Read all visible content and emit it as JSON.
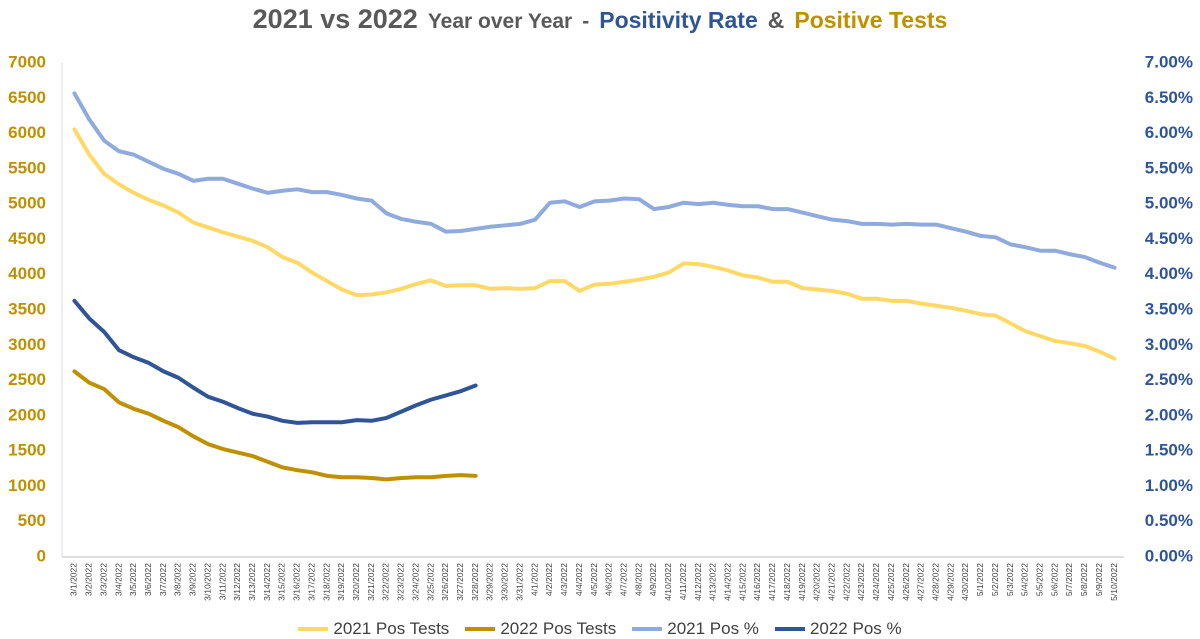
{
  "chart_data": {
    "type": "line",
    "title_parts": [
      {
        "text": "2021 vs 2022",
        "color": "#595959"
      },
      {
        "text": "Year over Year",
        "color": "#595959"
      },
      {
        "text": "-",
        "color": "#595959"
      },
      {
        "text": "Positivity Rate",
        "color": "#2f5597"
      },
      {
        "text": "&",
        "color": "#595959"
      },
      {
        "text": "Positive Tests",
        "color": "#bf9000"
      }
    ],
    "categories": [
      "3/1/2022",
      "3/2/2022",
      "3/3/2022",
      "3/4/2022",
      "3/5/2022",
      "3/6/2022",
      "3/7/2022",
      "3/8/2022",
      "3/9/2022",
      "3/10/2022",
      "3/11/2022",
      "3/12/2022",
      "3/13/2022",
      "3/14/2022",
      "3/15/2022",
      "3/16/2022",
      "3/17/2022",
      "3/18/2022",
      "3/19/2022",
      "3/20/2022",
      "3/21/2022",
      "3/22/2022",
      "3/23/2022",
      "3/24/2022",
      "3/25/2022",
      "3/26/2022",
      "3/27/2022",
      "3/28/2022",
      "3/29/2022",
      "3/30/2022",
      "3/31/2022",
      "4/1/2022",
      "4/2/2022",
      "4/3/2022",
      "4/4/2022",
      "4/5/2022",
      "4/6/2022",
      "4/7/2022",
      "4/8/2022",
      "4/9/2022",
      "4/10/2022",
      "4/11/2022",
      "4/12/2022",
      "4/13/2022",
      "4/14/2022",
      "4/15/2022",
      "4/16/2022",
      "4/17/2022",
      "4/18/2022",
      "4/19/2022",
      "4/20/2022",
      "4/21/2022",
      "4/22/2022",
      "4/23/2022",
      "4/24/2022",
      "4/25/2022",
      "4/26/2022",
      "4/27/2022",
      "4/28/2022",
      "4/29/2022",
      "4/30/2022",
      "5/1/2022",
      "5/2/2022",
      "5/3/2022",
      "5/4/2022",
      "5/5/2022",
      "5/6/2022",
      "5/7/2022",
      "5/8/2022",
      "5/9/2022",
      "5/10/2022"
    ],
    "series": [
      {
        "name": "2021 Pos Tests",
        "color": "#ffd966",
        "axis": "y",
        "values": [
          6060,
          5700,
          5430,
          5280,
          5160,
          5060,
          4980,
          4880,
          4740,
          4670,
          4600,
          4540,
          4480,
          4390,
          4250,
          4170,
          4030,
          3910,
          3790,
          3710,
          3720,
          3750,
          3800,
          3870,
          3920,
          3840,
          3850,
          3850,
          3800,
          3810,
          3800,
          3810,
          3910,
          3910,
          3770,
          3860,
          3870,
          3900,
          3930,
          3970,
          4030,
          4160,
          4150,
          4110,
          4060,
          3990,
          3960,
          3900,
          3900,
          3810,
          3790,
          3770,
          3730,
          3660,
          3660,
          3630,
          3630,
          3590,
          3560,
          3530,
          3490,
          3440,
          3420,
          3310,
          3200,
          3130,
          3060,
          3030,
          2990,
          2910,
          2810
        ]
      },
      {
        "name": "2022 Pos Tests",
        "color": "#bf9000",
        "axis": "y",
        "values": [
          2630,
          2470,
          2380,
          2190,
          2100,
          2030,
          1930,
          1840,
          1710,
          1600,
          1530,
          1480,
          1430,
          1350,
          1270,
          1230,
          1200,
          1150,
          1130,
          1130,
          1120,
          1100,
          1120,
          1130,
          1130,
          1150,
          1160,
          1150,
          null,
          null,
          null,
          null,
          null,
          null,
          null,
          null,
          null,
          null,
          null,
          null,
          null,
          null,
          null,
          null,
          null,
          null,
          null,
          null,
          null,
          null,
          null,
          null,
          null,
          null,
          null,
          null,
          null,
          null,
          null,
          null,
          null,
          null,
          null,
          null,
          null,
          null,
          null,
          null,
          null,
          null,
          null
        ]
      },
      {
        "name": "2021 Pos %",
        "color": "#8faadc",
        "axis": "y2",
        "values": [
          6.57,
          6.2,
          5.9,
          5.75,
          5.7,
          5.6,
          5.5,
          5.43,
          5.33,
          5.36,
          5.36,
          5.29,
          5.22,
          5.16,
          5.19,
          5.21,
          5.17,
          5.17,
          5.13,
          5.08,
          5.05,
          4.87,
          4.79,
          4.75,
          4.72,
          4.61,
          4.62,
          4.65,
          4.68,
          4.7,
          4.72,
          4.78,
          5.02,
          5.04,
          4.96,
          5.04,
          5.05,
          5.08,
          5.07,
          4.93,
          4.96,
          5.02,
          5.0,
          5.02,
          4.99,
          4.97,
          4.97,
          4.93,
          4.93,
          4.88,
          4.83,
          4.78,
          4.76,
          4.72,
          4.72,
          4.71,
          4.72,
          4.71,
          4.71,
          4.66,
          4.61,
          4.55,
          4.53,
          4.43,
          4.39,
          4.34,
          4.34,
          4.29,
          4.25,
          4.17,
          4.1
        ]
      },
      {
        "name": "2022 Pos %",
        "color": "#2f5597",
        "axis": "y2",
        "values": [
          3.63,
          3.38,
          3.19,
          2.93,
          2.83,
          2.75,
          2.63,
          2.54,
          2.4,
          2.27,
          2.2,
          2.11,
          2.03,
          1.99,
          1.93,
          1.9,
          1.91,
          1.91,
          1.91,
          1.94,
          1.93,
          1.97,
          2.06,
          2.15,
          2.23,
          2.29,
          2.35,
          2.43,
          null,
          null,
          null,
          null,
          null,
          null,
          null,
          null,
          null,
          null,
          null,
          null,
          null,
          null,
          null,
          null,
          null,
          null,
          null,
          null,
          null,
          null,
          null,
          null,
          null,
          null,
          null,
          null,
          null,
          null,
          null,
          null,
          null,
          null,
          null,
          null,
          null,
          null,
          null,
          null,
          null,
          null,
          null
        ]
      }
    ],
    "ylim": [
      0,
      7000
    ],
    "yticks": [
      0,
      500,
      1000,
      1500,
      2000,
      2500,
      3000,
      3500,
      4000,
      4500,
      5000,
      5500,
      6000,
      6500,
      7000
    ],
    "y_tick_color": "#bf9000",
    "y2lim": [
      0,
      7
    ],
    "y2ticks": [
      {
        "value": 0,
        "label": "0.00%"
      },
      {
        "value": 0.5,
        "label": "0.50%"
      },
      {
        "value": 1,
        "label": "1.00%"
      },
      {
        "value": 1.5,
        "label": "1.50%"
      },
      {
        "value": 2,
        "label": "2.00%"
      },
      {
        "value": 2.5,
        "label": "2.50%"
      },
      {
        "value": 3,
        "label": "3.00%"
      },
      {
        "value": 3.5,
        "label": "3.50%"
      },
      {
        "value": 4,
        "label": "4.00%"
      },
      {
        "value": 4.5,
        "label": "4.50%"
      },
      {
        "value": 5,
        "label": "5.00%"
      },
      {
        "value": 5.5,
        "label": "5.50%"
      },
      {
        "value": 6,
        "label": "6.00%"
      },
      {
        "value": 6.5,
        "label": "6.50%"
      },
      {
        "value": 7,
        "label": "7.00%"
      }
    ],
    "y2_tick_color": "#2f5597",
    "grid": false,
    "legend": "bottom"
  }
}
